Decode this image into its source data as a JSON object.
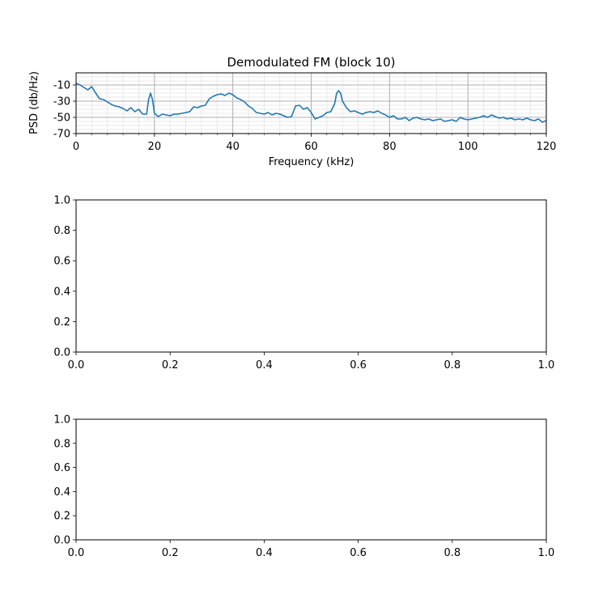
{
  "chart_data": [
    {
      "type": "line",
      "title": "Demodulated FM (block 10)",
      "xlabel": "Frequency (kHz)",
      "ylabel": "PSD (db/Hz)",
      "xlim": [
        0,
        120
      ],
      "ylim": [
        -70,
        5
      ],
      "xticks": [
        0,
        20,
        40,
        60,
        80,
        100,
        120
      ],
      "yticks": [
        -10,
        -30,
        -50,
        -70
      ],
      "grid": true,
      "series": [
        {
          "color": "#1f77b4",
          "x": [
            0,
            1,
            2,
            3,
            4,
            5,
            6,
            7,
            8,
            9,
            10,
            11,
            12,
            13,
            14,
            15,
            16,
            17,
            18,
            18.5,
            19,
            19.5,
            20,
            21,
            22,
            23,
            24,
            25,
            26,
            27,
            28,
            29,
            30,
            31,
            32,
            33,
            34,
            35,
            36,
            37,
            38,
            39,
            40,
            41,
            42,
            43,
            44,
            45,
            46,
            47,
            48,
            49,
            50,
            51,
            52,
            53,
            54,
            55,
            56,
            57,
            58,
            59,
            60,
            61,
            62,
            63,
            64,
            65,
            66,
            66.5,
            67,
            67.5,
            68,
            69,
            70,
            71,
            72,
            73,
            74,
            75,
            76,
            77,
            78,
            79,
            80,
            81,
            82,
            83,
            84,
            85,
            86,
            87,
            88,
            89,
            90,
            91,
            92,
            93,
            94,
            95,
            96,
            97,
            98,
            99,
            100,
            101,
            102,
            103,
            104,
            105,
            106,
            107,
            108,
            109,
            110,
            111,
            112,
            113,
            114,
            115,
            116,
            117,
            118,
            119,
            120
          ],
          "y": [
            -8,
            -10,
            -13,
            -16,
            -12,
            -20,
            -27,
            -28,
            -31,
            -34,
            -36,
            -37,
            -39,
            -42,
            -38,
            -43,
            -40,
            -46,
            -46,
            -28,
            -20,
            -28,
            -45,
            -49,
            -46,
            -47,
            -48,
            -46,
            -46,
            -45,
            -44,
            -43,
            -37,
            -38,
            -36,
            -35,
            -27,
            -24,
            -22,
            -21,
            -23,
            -20,
            -22,
            -26,
            -28,
            -31,
            -36,
            -39,
            -44,
            -45,
            -46,
            -44,
            -47,
            -45,
            -46,
            -48,
            -50,
            -49,
            -36,
            -35,
            -40,
            -38,
            -44,
            -52,
            -50,
            -48,
            -44,
            -43,
            -33,
            -20,
            -17,
            -20,
            -30,
            -38,
            -43,
            -42,
            -44,
            -46,
            -44,
            -43,
            -44,
            -42,
            -45,
            -47,
            -50,
            -48,
            -52,
            -52,
            -50,
            -54,
            -51,
            -50,
            -52,
            -53,
            -52,
            -54,
            -53,
            -52,
            -55,
            -54,
            -53,
            -55,
            -50,
            -52,
            -53,
            -52,
            -51,
            -50,
            -48,
            -50,
            -47,
            -49,
            -51,
            -50,
            -52,
            -51,
            -53,
            -52,
            -53,
            -51,
            -53,
            -54,
            -52,
            -56,
            -54
          ]
        }
      ]
    },
    {
      "type": "line",
      "title": "",
      "xlabel": "",
      "ylabel": "",
      "xlim": [
        0,
        1
      ],
      "ylim": [
        0,
        1
      ],
      "xticks": [
        0.0,
        0.2,
        0.4,
        0.6,
        0.8,
        1.0
      ],
      "yticks": [
        0.0,
        0.2,
        0.4,
        0.6,
        0.8,
        1.0
      ],
      "grid": false,
      "series": []
    },
    {
      "type": "line",
      "title": "",
      "xlabel": "",
      "ylabel": "",
      "xlim": [
        0,
        1
      ],
      "ylim": [
        0,
        1
      ],
      "xticks": [
        0.0,
        0.2,
        0.4,
        0.6,
        0.8,
        1.0
      ],
      "yticks": [
        0.0,
        0.2,
        0.4,
        0.6,
        0.8,
        1.0
      ],
      "grid": false,
      "series": []
    }
  ]
}
